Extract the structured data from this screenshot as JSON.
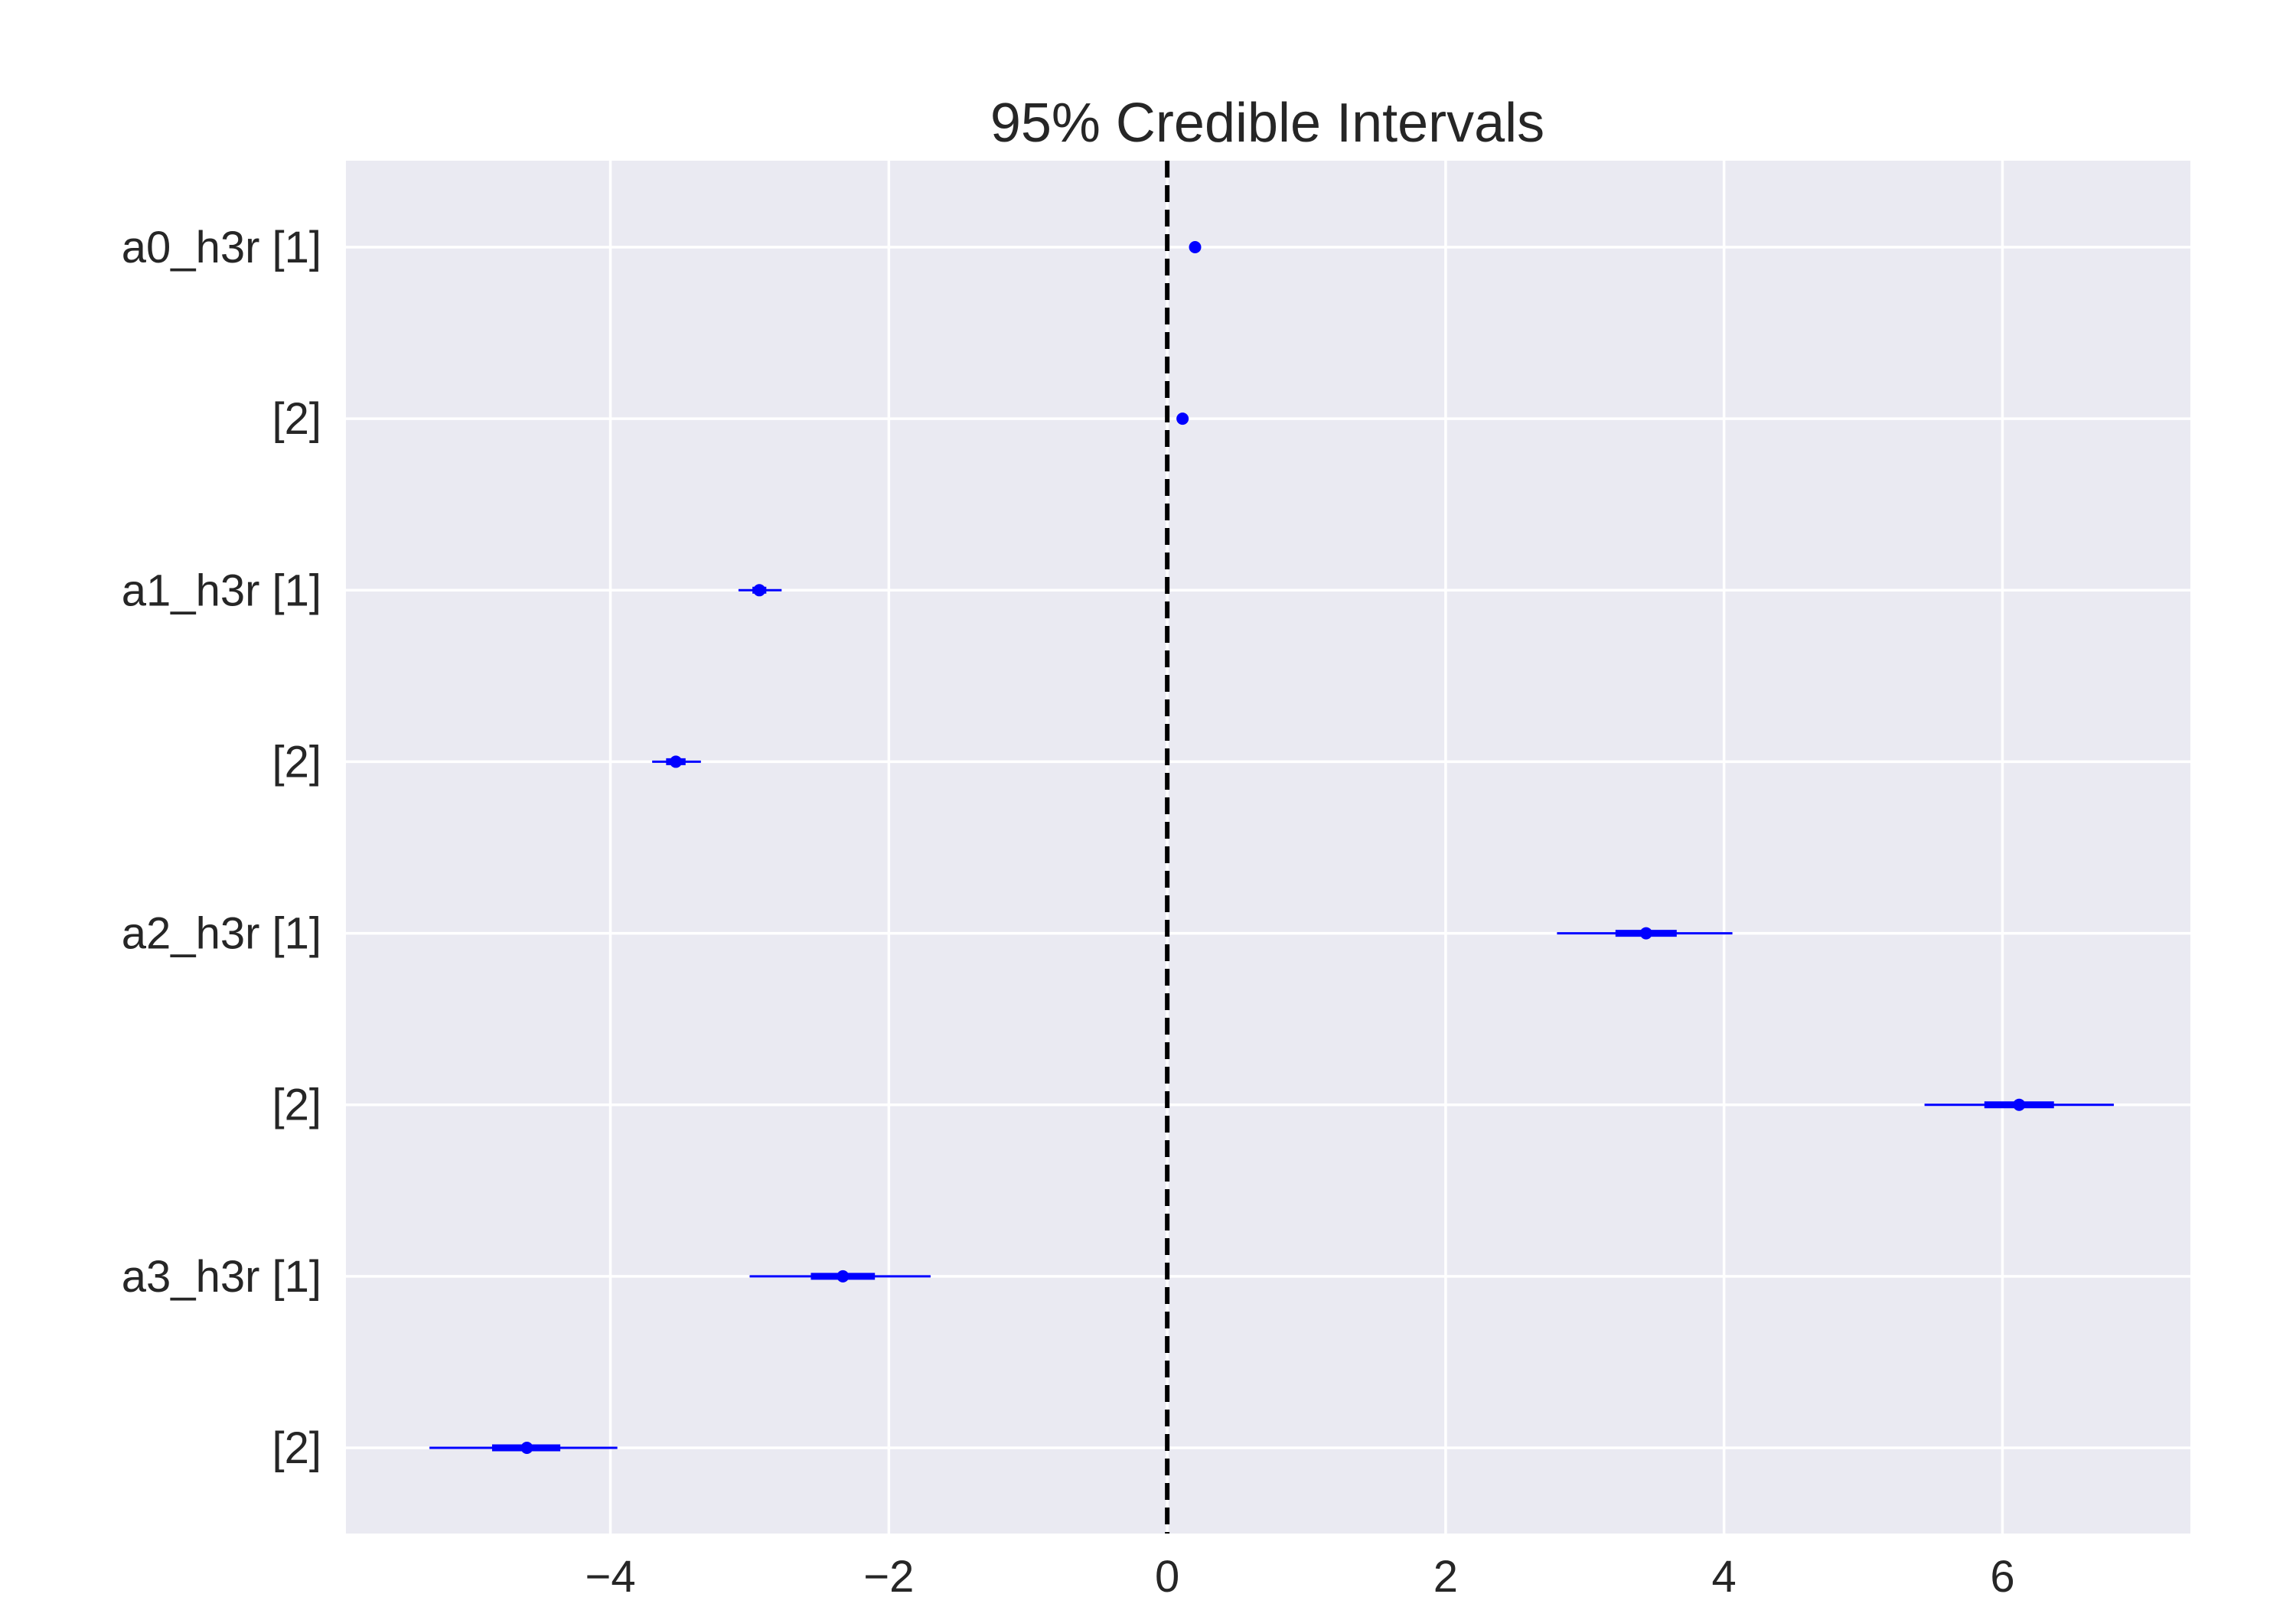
{
  "chart_data": {
    "type": "forest",
    "title": "95% Credible Intervals",
    "xlabel": "",
    "ylabel": "",
    "xlim": [
      -5.9,
      7.35
    ],
    "xticks": [
      -4,
      -2,
      0,
      2,
      4,
      6
    ],
    "xtick_labels": [
      "−4",
      "−2",
      "0",
      "2",
      "4",
      "6"
    ],
    "reference_line": 0,
    "grid": true,
    "background": "#eaeaf2",
    "grid_color": "#ffffff",
    "series_color": "#0000ff",
    "reference_color": "#000000",
    "rows": [
      {
        "label": "a0_h3r [1]",
        "mean": 0.2,
        "hdi95": [
          0.2,
          0.2
        ],
        "iqr": [
          0.2,
          0.2
        ]
      },
      {
        "label": "[2]",
        "mean": 0.11,
        "hdi95": [
          0.11,
          0.11
        ],
        "iqr": [
          0.11,
          0.11
        ]
      },
      {
        "label": "a1_h3r [1]",
        "mean": -2.93,
        "hdi95": [
          -3.08,
          -2.77
        ],
        "iqr": [
          -2.98,
          -2.88
        ]
      },
      {
        "label": "[2]",
        "mean": -3.53,
        "hdi95": [
          -3.7,
          -3.35
        ],
        "iqr": [
          -3.6,
          -3.46
        ]
      },
      {
        "label": "a2_h3r [1]",
        "mean": 3.44,
        "hdi95": [
          2.8,
          4.06
        ],
        "iqr": [
          3.22,
          3.66
        ]
      },
      {
        "label": "[2]",
        "mean": 6.12,
        "hdi95": [
          5.44,
          6.8
        ],
        "iqr": [
          5.87,
          6.37
        ]
      },
      {
        "label": "a3_h3r [1]",
        "mean": -2.33,
        "hdi95": [
          -3.0,
          -1.7
        ],
        "iqr": [
          -2.56,
          -2.1
        ]
      },
      {
        "label": "[2]",
        "mean": -4.6,
        "hdi95": [
          -5.3,
          -3.95
        ],
        "iqr": [
          -4.85,
          -4.36
        ]
      }
    ]
  }
}
